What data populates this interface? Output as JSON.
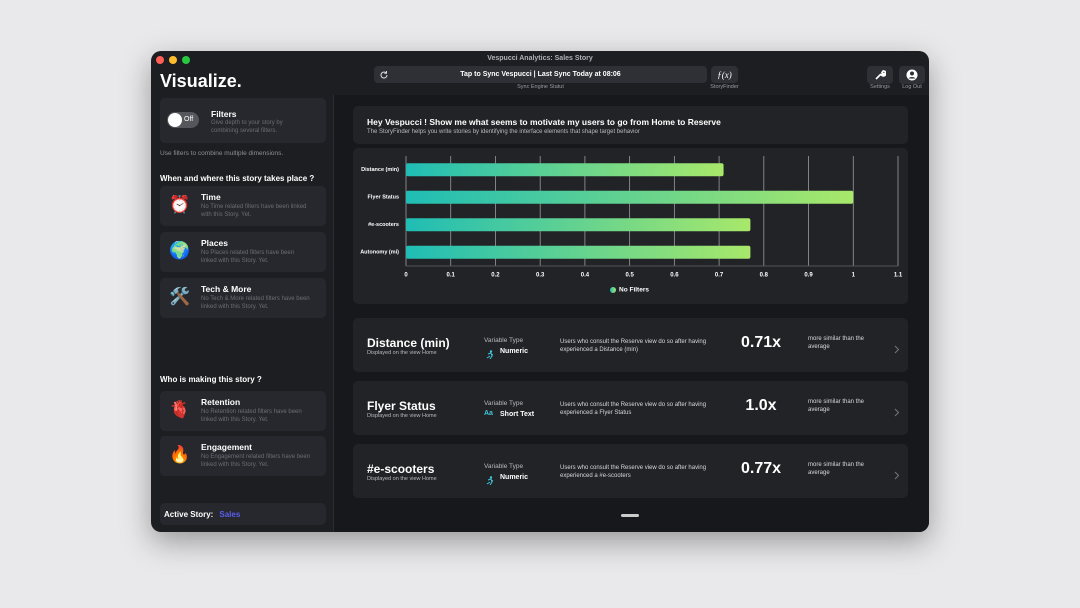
{
  "window": {
    "title": "Vespucci Analytics: Sales Story"
  },
  "toolbar": {
    "sync_button": "Tap to Sync Vespucci | Last Sync Today at 08:06",
    "sync_caption": "Sync Engine Statut",
    "storyfinder_icon": "ƒ(x)",
    "storyfinder_caption": "StoryFinder",
    "settings": "Settings",
    "logout": "Log Out"
  },
  "sidebar": {
    "title": "Visualize.",
    "filters": {
      "label": "Filters",
      "toggle": "Off",
      "description": "Give depth to your story by combining several filters."
    },
    "hint": "Use filters to combine multiple dimensions.",
    "section_where": "When and where this story takes place ?",
    "items_where": [
      {
        "icon": "⏰",
        "title": "Time",
        "description": "No Time related filters have been linked with this Story. Yet."
      },
      {
        "icon": "🌍",
        "title": "Places",
        "description": "No Places related filters have been linked with this Story. Yet."
      },
      {
        "icon": "🛠️",
        "title": "Tech & More",
        "description": "No Tech & More related filters have been linked with this Story. Yet."
      }
    ],
    "section_who": "Who is making this story ?",
    "items_who": [
      {
        "icon": "🫀",
        "title": "Retention",
        "description": "No Retention related filters have been linked with this Story. Yet."
      },
      {
        "icon": "🔥",
        "title": "Engagement",
        "description": "No Engagement related filters have been linked with this Story. Yet."
      }
    ],
    "active_story_label": "Active Story:",
    "active_story": "Sales"
  },
  "header": {
    "title": "Hey Vespucci ! Show me what seems to motivate my users to go from Home to Reserve",
    "subtitle": "The StoryFinder helps you write stories by identifying the interface elements that shape target behavior"
  },
  "chart_data": {
    "type": "bar",
    "orientation": "horizontal",
    "categories": [
      "Distance (min)",
      "Flyer Status",
      "#e-scooters",
      "Autonomy (mi)"
    ],
    "series": [
      {
        "name": "No Filters",
        "color": [
          "#1fbdb5",
          "#a8e86a"
        ],
        "values": [
          0.71,
          1.0,
          0.77,
          0.77
        ]
      }
    ],
    "xlim": [
      0,
      1.1
    ],
    "xticks": [
      0,
      0.1,
      0.2,
      0.3,
      0.4,
      0.5,
      0.6,
      0.7,
      0.8,
      0.9,
      1,
      1.1
    ],
    "grid": true,
    "legend": "bottom"
  },
  "cards": [
    {
      "title": "Distance (min)",
      "subtitle": "Displayed on the view Home",
      "type_label": "Variable Type",
      "type": "Numeric",
      "description": "Users who consult the Reserve view do so after having experienced a Distance (min)",
      "value": "0.71x",
      "comparison": "more similar than the average"
    },
    {
      "title": "Flyer Status",
      "subtitle": "Displayed on the view Home",
      "type_label": "Variable Type",
      "type_icon": "Aa",
      "type": "Short Text",
      "description": "Users who consult the Reserve view do so after having experienced a Flyer Status",
      "value": "1.0x",
      "comparison": "more similar than the average"
    },
    {
      "title": "#e-scooters",
      "subtitle": "Displayed on the view Home",
      "type_label": "Variable Type",
      "type": "Numeric",
      "description": "Users who consult the Reserve view do so after having experienced a #e-scooters",
      "value": "0.77x",
      "comparison": "more similar than the average"
    }
  ]
}
